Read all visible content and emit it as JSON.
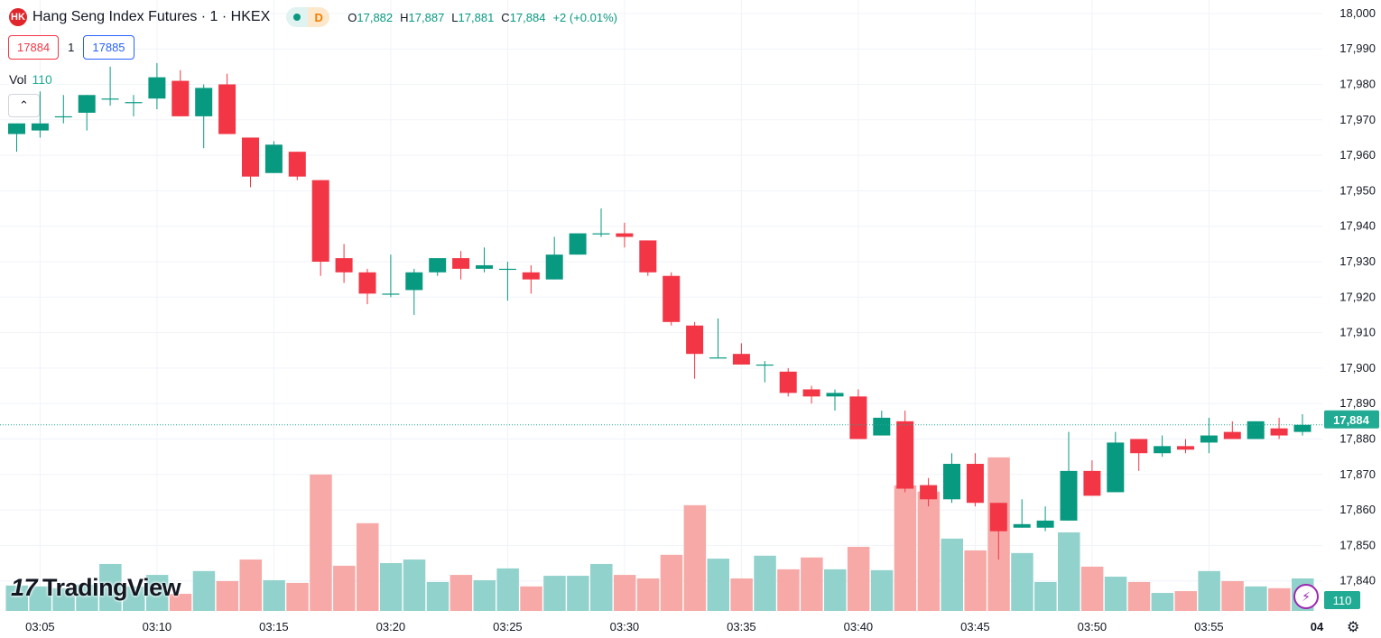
{
  "header": {
    "logo_text": "HK",
    "title": "Hang Seng Index Futures · 1 · HKEX",
    "status_letter": "D",
    "ohlc": {
      "o_label": "O",
      "o": "17,882",
      "h_label": "H",
      "h": "17,887",
      "l_label": "L",
      "l": "17,881",
      "c_label": "C",
      "c": "17,884",
      "change": "+2 (+0.01%)"
    }
  },
  "trade": {
    "sell_price": "17884",
    "quantity": "1",
    "buy_price": "17885"
  },
  "volume_legend": {
    "label": "Vol",
    "value": "110"
  },
  "branding": {
    "logo": "TradingView"
  },
  "icons": {
    "collapse": "chevron-up-icon",
    "bolt": "lightning-icon",
    "settings": "gear-icon"
  },
  "colors": {
    "up": "#089981",
    "down": "#F23645",
    "vol_up": "#92D2CC",
    "vol_down": "#F7A9A7",
    "grid": "#F0F3FA",
    "last_price": "#22AB94"
  },
  "chart_data": {
    "type": "candlestick",
    "y_ticks": [
      "18,000",
      "17,990",
      "17,980",
      "17,970",
      "17,960",
      "17,950",
      "17,940",
      "17,930",
      "17,920",
      "17,910",
      "17,900",
      "17,890",
      "17,880",
      "17,870",
      "17,860",
      "17,850",
      "17,840"
    ],
    "y_tick_values": [
      18000,
      17990,
      17980,
      17970,
      17960,
      17950,
      17940,
      17930,
      17920,
      17910,
      17900,
      17890,
      17880,
      17870,
      17860,
      17850,
      17840
    ],
    "x_ticks": [
      "03:05",
      "03:10",
      "03:15",
      "03:20",
      "03:25",
      "03:30",
      "03:35",
      "03:40",
      "03:45",
      "03:50",
      "03:55",
      "04"
    ],
    "last_price": 17884,
    "last_price_label": "17,884",
    "last_volume_label": "110",
    "grid": true,
    "candles": [
      {
        "t": "03:04",
        "o": 17966,
        "h": 17969,
        "l": 17961,
        "c": 17969,
        "v": 86
      },
      {
        "t": "03:05",
        "o": 17967,
        "h": 17978,
        "l": 17965,
        "c": 17969,
        "v": 83
      },
      {
        "t": "03:06",
        "o": 17971,
        "h": 17977,
        "l": 17969,
        "c": 17971,
        "v": 77
      },
      {
        "t": "03:07",
        "o": 17972,
        "h": 17977,
        "l": 17967,
        "c": 17977,
        "v": 89
      },
      {
        "t": "03:08",
        "o": 17976,
        "h": 17985,
        "l": 17974,
        "c": 17976,
        "v": 159
      },
      {
        "t": "03:09",
        "o": 17975,
        "h": 17977,
        "l": 17971,
        "c": 17975,
        "v": 83
      },
      {
        "t": "03:10",
        "o": 17976,
        "h": 17986,
        "l": 17973,
        "c": 17982,
        "v": 122
      },
      {
        "t": "03:11",
        "o": 17981,
        "h": 17984,
        "l": 17971,
        "c": 17971,
        "v": 58
      },
      {
        "t": "03:12",
        "o": 17971,
        "h": 17980,
        "l": 17962,
        "c": 17979,
        "v": 135
      },
      {
        "t": "03:13",
        "o": 17980,
        "h": 17983,
        "l": 17966,
        "c": 17966,
        "v": 101
      },
      {
        "t": "03:14",
        "o": 17965,
        "h": 17965,
        "l": 17951,
        "c": 17954,
        "v": 174
      },
      {
        "t": "03:15",
        "o": 17955,
        "h": 17964,
        "l": 17955,
        "c": 17963,
        "v": 104
      },
      {
        "t": "03:16",
        "o": 17961,
        "h": 17961,
        "l": 17953,
        "c": 17954,
        "v": 95
      },
      {
        "t": "03:17",
        "o": 17953,
        "h": 17953,
        "l": 17926,
        "c": 17930,
        "v": 462
      },
      {
        "t": "03:18",
        "o": 17931,
        "h": 17935,
        "l": 17924,
        "c": 17927,
        "v": 153
      },
      {
        "t": "03:19",
        "o": 17927,
        "h": 17928,
        "l": 17918,
        "c": 17921,
        "v": 297
      },
      {
        "t": "03:20",
        "o": 17921,
        "h": 17932,
        "l": 17920,
        "c": 17921,
        "v": 162
      },
      {
        "t": "03:21",
        "o": 17922,
        "h": 17928,
        "l": 17915,
        "c": 17927,
        "v": 174
      },
      {
        "t": "03:22",
        "o": 17927,
        "h": 17931,
        "l": 17926,
        "c": 17931,
        "v": 98
      },
      {
        "t": "03:23",
        "o": 17931,
        "h": 17933,
        "l": 17925,
        "c": 17928,
        "v": 122
      },
      {
        "t": "03:24",
        "o": 17928,
        "h": 17934,
        "l": 17927,
        "c": 17929,
        "v": 104
      },
      {
        "t": "03:25",
        "o": 17928,
        "h": 17930,
        "l": 17919,
        "c": 17928,
        "v": 144
      },
      {
        "t": "03:26",
        "o": 17927,
        "h": 17929,
        "l": 17921,
        "c": 17925,
        "v": 83
      },
      {
        "t": "03:27",
        "o": 17925,
        "h": 17937,
        "l": 17925,
        "c": 17932,
        "v": 119
      },
      {
        "t": "03:28",
        "o": 17932,
        "h": 17938,
        "l": 17932,
        "c": 17938,
        "v": 119
      },
      {
        "t": "03:29",
        "o": 17938,
        "h": 17945,
        "l": 17937,
        "c": 17938,
        "v": 159
      },
      {
        "t": "03:30",
        "o": 17938,
        "h": 17941,
        "l": 17934,
        "c": 17937,
        "v": 122
      },
      {
        "t": "03:31",
        "o": 17936,
        "h": 17936,
        "l": 17926,
        "c": 17927,
        "v": 110
      },
      {
        "t": "03:32",
        "o": 17926,
        "h": 17927,
        "l": 17912,
        "c": 17913,
        "v": 190
      },
      {
        "t": "03:33",
        "o": 17912,
        "h": 17913,
        "l": 17897,
        "c": 17904,
        "v": 358
      },
      {
        "t": "03:34",
        "o": 17903,
        "h": 17914,
        "l": 17903,
        "c": 17903,
        "v": 177
      },
      {
        "t": "03:35",
        "o": 17904,
        "h": 17907,
        "l": 17901,
        "c": 17901,
        "v": 110
      },
      {
        "t": "03:36",
        "o": 17901,
        "h": 17902,
        "l": 17896,
        "c": 17901,
        "v": 187
      },
      {
        "t": "03:37",
        "o": 17899,
        "h": 17900,
        "l": 17892,
        "c": 17893,
        "v": 141
      },
      {
        "t": "03:38",
        "o": 17894,
        "h": 17895,
        "l": 17890,
        "c": 17892,
        "v": 181
      },
      {
        "t": "03:39",
        "o": 17892,
        "h": 17894,
        "l": 17888,
        "c": 17893,
        "v": 141
      },
      {
        "t": "03:40",
        "o": 17892,
        "h": 17894,
        "l": 17880,
        "c": 17880,
        "v": 217
      },
      {
        "t": "03:41",
        "o": 17881,
        "h": 17888,
        "l": 17881,
        "c": 17886,
        "v": 138
      },
      {
        "t": "03:42",
        "o": 17885,
        "h": 17888,
        "l": 17865,
        "c": 17866,
        "v": 425
      },
      {
        "t": "03:43",
        "o": 17867,
        "h": 17869,
        "l": 17861,
        "c": 17863,
        "v": 404
      },
      {
        "t": "03:44",
        "o": 17863,
        "h": 17876,
        "l": 17862,
        "c": 17873,
        "v": 245
      },
      {
        "t": "03:45",
        "o": 17873,
        "h": 17876,
        "l": 17861,
        "c": 17862,
        "v": 205
      },
      {
        "t": "03:46",
        "o": 17862,
        "h": 17862,
        "l": 17846,
        "c": 17854,
        "v": 520
      },
      {
        "t": "03:47",
        "o": 17855,
        "h": 17863,
        "l": 17855,
        "c": 17856,
        "v": 196
      },
      {
        "t": "03:48",
        "o": 17855,
        "h": 17861,
        "l": 17854,
        "c": 17857,
        "v": 98
      },
      {
        "t": "03:49",
        "o": 17857,
        "h": 17882,
        "l": 17857,
        "c": 17871,
        "v": 266
      },
      {
        "t": "03:50",
        "o": 17871,
        "h": 17874,
        "l": 17864,
        "c": 17864,
        "v": 150
      },
      {
        "t": "03:51",
        "o": 17865,
        "h": 17882,
        "l": 17865,
        "c": 17879,
        "v": 116
      },
      {
        "t": "03:52",
        "o": 17880,
        "h": 17880,
        "l": 17871,
        "c": 17876,
        "v": 98
      },
      {
        "t": "03:53",
        "o": 17876,
        "h": 17881,
        "l": 17875,
        "c": 17878,
        "v": 61
      },
      {
        "t": "03:54",
        "o": 17878,
        "h": 17880,
        "l": 17876,
        "c": 17877,
        "v": 67
      },
      {
        "t": "03:55",
        "o": 17879,
        "h": 17886,
        "l": 17876,
        "c": 17881,
        "v": 135
      },
      {
        "t": "03:56",
        "o": 17882,
        "h": 17885,
        "l": 17880,
        "c": 17880,
        "v": 101
      },
      {
        "t": "03:57",
        "o": 17880,
        "h": 17885,
        "l": 17880,
        "c": 17885,
        "v": 83
      },
      {
        "t": "03:58",
        "o": 17883,
        "h": 17886,
        "l": 17880,
        "c": 17881,
        "v": 77
      },
      {
        "t": "03:59",
        "o": 17882,
        "h": 17887,
        "l": 17881,
        "c": 17884,
        "v": 110
      }
    ]
  }
}
